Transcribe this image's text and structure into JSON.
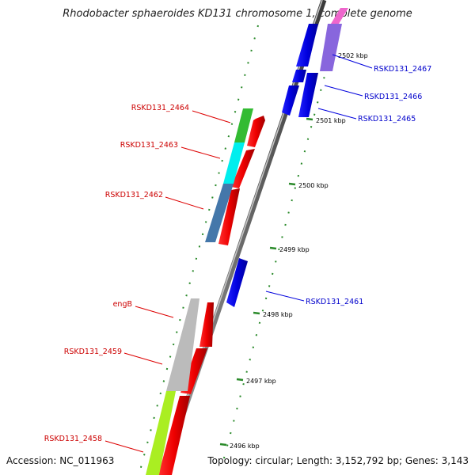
{
  "title": "Rhodobacter sphaeroides KD131 chromosome 1, complete genome",
  "accession": "Accession: NC_011963",
  "topology": "Topology: circular; Length: 3,152,792 bp; Genes: 3,143",
  "ticks": [
    "2502 kbp",
    "2501 kbp",
    "2500 kbp",
    "2499 kbp",
    "2498 kbp",
    "2497 kbp",
    "2496 kbp"
  ],
  "genes_left": [
    "RSKD131_2464",
    "RSKD131_2463",
    "RSKD131_2462",
    "engB",
    "RSKD131_2459",
    "RSKD131_2458"
  ],
  "genes_right": [
    "RSKD131_2467",
    "RSKD131_2466",
    "RSKD131_2465",
    "RSKD131_2461"
  ],
  "colors": {
    "reverse_label": "#cc0000",
    "forward_label": "#0000cc",
    "forward_gene": "#0000ee",
    "reverse_gene": "#ff0000",
    "backbone": "#8a8a8a",
    "tick": "#2a8a2a"
  }
}
